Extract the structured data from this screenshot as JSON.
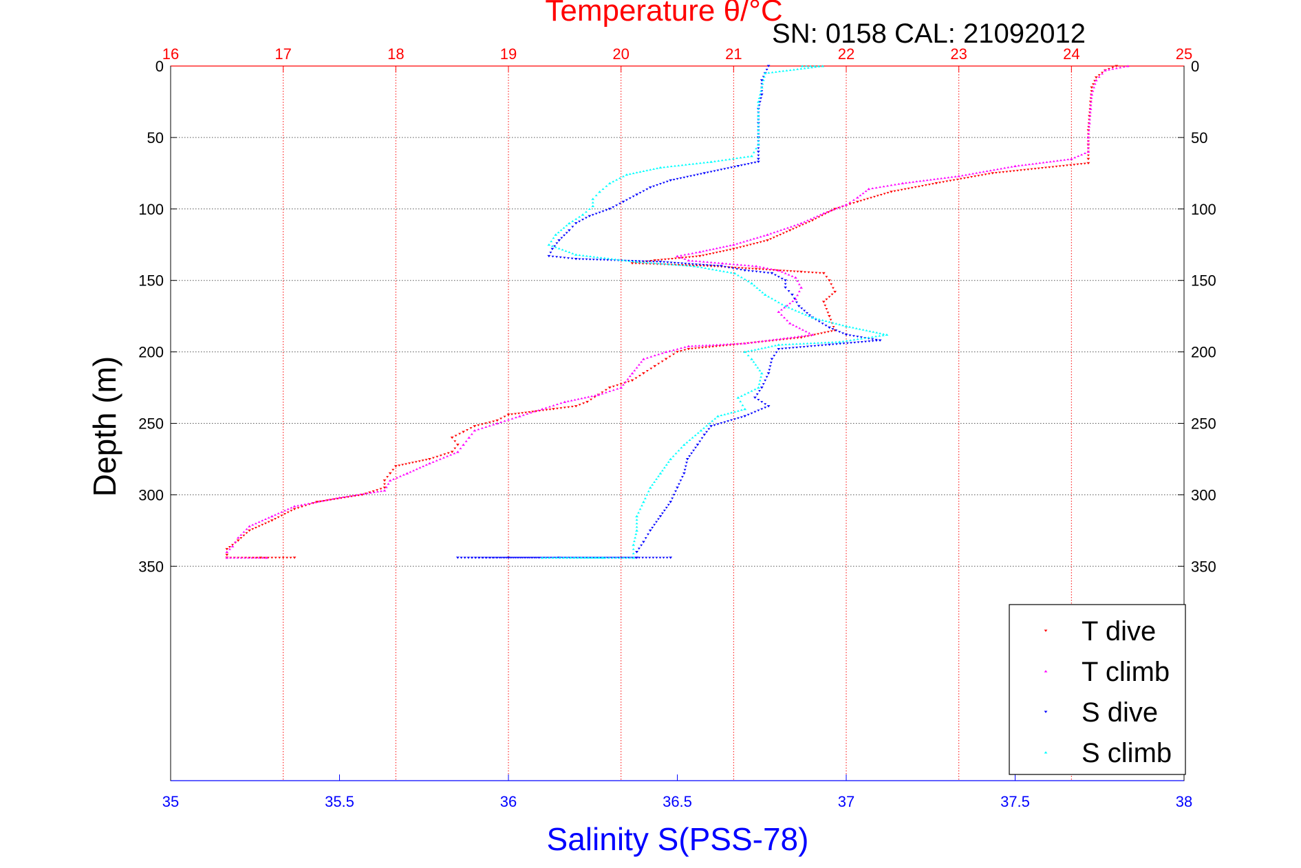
{
  "chart_data": {
    "type": "scatter",
    "title": "Temperature θ/°C",
    "subtitle": "SN: 0158  CAL: 21092012",
    "xlabel": "Salinity S(PSS-78)",
    "x2label": "Temperature θ/°C",
    "ylabel": "Depth (m)",
    "xlim": [
      35,
      38
    ],
    "x2lim": [
      16,
      25
    ],
    "ylim": [
      0,
      500
    ],
    "y_reversed": true,
    "x_ticks": [
      35,
      35.5,
      36,
      36.5,
      37,
      37.5,
      38
    ],
    "x_tick_labels": [
      "35",
      "35.5",
      "36",
      "36.5",
      "37",
      "37.5",
      "38"
    ],
    "x2_ticks": [
      16,
      17,
      18,
      19,
      20,
      21,
      22,
      23,
      24,
      25
    ],
    "x2_tick_labels": [
      "16",
      "17",
      "18",
      "19",
      "20",
      "21",
      "22",
      "23",
      "24",
      "25"
    ],
    "y_ticks": [
      0,
      50,
      100,
      150,
      200,
      250,
      300,
      350
    ],
    "y_tick_labels": [
      "0",
      "50",
      "100",
      "150",
      "200",
      "250",
      "300",
      "350"
    ],
    "grid": true,
    "legend_position": "bottom-right",
    "colors": {
      "t_dive": "#ff0000",
      "t_climb": "#ff00ff",
      "s_dive": "#0000ff",
      "s_climb": "#00ffff",
      "temperature_axis": "#ff0000",
      "salinity_axis": "#0000ff"
    },
    "series": [
      {
        "name": "T dive",
        "axis": "temperature",
        "marker": "down-triangle",
        "points": [
          [
            24.4,
            0
          ],
          [
            24.3,
            3
          ],
          [
            24.22,
            8
          ],
          [
            24.18,
            15
          ],
          [
            24.17,
            25
          ],
          [
            24.16,
            35
          ],
          [
            24.15,
            45
          ],
          [
            24.15,
            55
          ],
          [
            24.15,
            65
          ],
          [
            24.15,
            68
          ],
          [
            23.3,
            75
          ],
          [
            22.8,
            82
          ],
          [
            22.4,
            88
          ],
          [
            22.1,
            95
          ],
          [
            21.9,
            100
          ],
          [
            21.7,
            108
          ],
          [
            21.5,
            115
          ],
          [
            21.3,
            122
          ],
          [
            21.0,
            128
          ],
          [
            20.7,
            133
          ],
          [
            20.3,
            136
          ],
          [
            20.1,
            138
          ],
          [
            20.8,
            140
          ],
          [
            21.2,
            142
          ],
          [
            21.6,
            144
          ],
          [
            21.8,
            145
          ],
          [
            21.85,
            150
          ],
          [
            21.9,
            158
          ],
          [
            21.8,
            165
          ],
          [
            21.85,
            175
          ],
          [
            21.9,
            185
          ],
          [
            21.6,
            190
          ],
          [
            21.0,
            195
          ],
          [
            20.6,
            198
          ],
          [
            20.5,
            200
          ],
          [
            20.4,
            205
          ],
          [
            20.3,
            210
          ],
          [
            20.2,
            215
          ],
          [
            20.1,
            220
          ],
          [
            19.9,
            225
          ],
          [
            19.8,
            230
          ],
          [
            19.7,
            235
          ],
          [
            19.6,
            238
          ],
          [
            19.4,
            240
          ],
          [
            19.0,
            244
          ],
          [
            18.9,
            248
          ],
          [
            18.7,
            252
          ],
          [
            18.6,
            256
          ],
          [
            18.5,
            260
          ],
          [
            18.55,
            265
          ],
          [
            18.5,
            270
          ],
          [
            18.3,
            275
          ],
          [
            18.0,
            280
          ],
          [
            17.95,
            285
          ],
          [
            17.9,
            290
          ],
          [
            17.9,
            295
          ],
          [
            17.7,
            300
          ],
          [
            17.3,
            305
          ],
          [
            17.1,
            310
          ],
          [
            16.9,
            318
          ],
          [
            16.7,
            325
          ],
          [
            16.6,
            332
          ],
          [
            16.5,
            338
          ],
          [
            16.5,
            342
          ],
          [
            16.5,
            344
          ],
          [
            16.8,
            344
          ],
          [
            17.1,
            344
          ]
        ]
      },
      {
        "name": "T climb",
        "axis": "temperature",
        "marker": "up-triangle",
        "points": [
          [
            24.5,
            0
          ],
          [
            24.3,
            3
          ],
          [
            24.22,
            10
          ],
          [
            24.18,
            20
          ],
          [
            24.17,
            30
          ],
          [
            24.16,
            40
          ],
          [
            24.15,
            50
          ],
          [
            24.15,
            60
          ],
          [
            24.0,
            65
          ],
          [
            23.5,
            70
          ],
          [
            23.0,
            77
          ],
          [
            22.5,
            82
          ],
          [
            22.2,
            86
          ],
          [
            22.1,
            92
          ],
          [
            22.0,
            97
          ],
          [
            21.8,
            103
          ],
          [
            21.6,
            110
          ],
          [
            21.3,
            118
          ],
          [
            21.0,
            125
          ],
          [
            20.7,
            130
          ],
          [
            20.5,
            133
          ],
          [
            20.6,
            136
          ],
          [
            20.9,
            138
          ],
          [
            21.2,
            140
          ],
          [
            21.4,
            143
          ],
          [
            21.55,
            148
          ],
          [
            21.6,
            155
          ],
          [
            21.55,
            163
          ],
          [
            21.4,
            172
          ],
          [
            21.5,
            180
          ],
          [
            21.7,
            188
          ],
          [
            21.1,
            194
          ],
          [
            20.6,
            196
          ],
          [
            20.4,
            200
          ],
          [
            20.2,
            205
          ],
          [
            20.1,
            215
          ],
          [
            20.0,
            225
          ],
          [
            19.8,
            230
          ],
          [
            19.5,
            235
          ],
          [
            19.3,
            240
          ],
          [
            19.1,
            245
          ],
          [
            18.9,
            250
          ],
          [
            18.7,
            255
          ],
          [
            18.65,
            260
          ],
          [
            18.6,
            265
          ],
          [
            18.55,
            270
          ],
          [
            18.3,
            278
          ],
          [
            18.1,
            285
          ],
          [
            17.95,
            290
          ],
          [
            17.9,
            297
          ],
          [
            17.5,
            302
          ],
          [
            17.1,
            308
          ],
          [
            16.9,
            315
          ],
          [
            16.7,
            322
          ],
          [
            16.6,
            330
          ],
          [
            16.55,
            336
          ],
          [
            16.5,
            340
          ],
          [
            16.5,
            344
          ],
          [
            16.85,
            344
          ]
        ]
      },
      {
        "name": "S dive",
        "axis": "salinity",
        "marker": "down-triangle",
        "points": [
          [
            36.77,
            0
          ],
          [
            36.76,
            5
          ],
          [
            36.75,
            10
          ],
          [
            36.75,
            20
          ],
          [
            36.74,
            30
          ],
          [
            36.74,
            40
          ],
          [
            36.74,
            50
          ],
          [
            36.74,
            60
          ],
          [
            36.74,
            65
          ],
          [
            36.74,
            67
          ],
          [
            36.68,
            70
          ],
          [
            36.58,
            75
          ],
          [
            36.48,
            80
          ],
          [
            36.42,
            85
          ],
          [
            36.38,
            90
          ],
          [
            36.34,
            95
          ],
          [
            36.3,
            100
          ],
          [
            36.24,
            105
          ],
          [
            36.2,
            110
          ],
          [
            36.18,
            115
          ],
          [
            36.15,
            122
          ],
          [
            36.13,
            128
          ],
          [
            36.12,
            133
          ],
          [
            36.2,
            135
          ],
          [
            36.45,
            137
          ],
          [
            36.63,
            140
          ],
          [
            36.7,
            143
          ],
          [
            36.78,
            145
          ],
          [
            36.82,
            150
          ],
          [
            36.82,
            155
          ],
          [
            36.84,
            160
          ],
          [
            36.86,
            168
          ],
          [
            36.9,
            176
          ],
          [
            36.95,
            183
          ],
          [
            37.0,
            188
          ],
          [
            37.1,
            192
          ],
          [
            36.95,
            195
          ],
          [
            36.8,
            198
          ],
          [
            36.78,
            205
          ],
          [
            36.77,
            215
          ],
          [
            36.75,
            225
          ],
          [
            36.73,
            232
          ],
          [
            36.77,
            238
          ],
          [
            36.7,
            245
          ],
          [
            36.6,
            252
          ],
          [
            36.58,
            258
          ],
          [
            36.56,
            265
          ],
          [
            36.53,
            275
          ],
          [
            36.52,
            285
          ],
          [
            36.5,
            295
          ],
          [
            36.48,
            305
          ],
          [
            36.45,
            315
          ],
          [
            36.42,
            325
          ],
          [
            36.4,
            333
          ],
          [
            36.38,
            340
          ],
          [
            36.38,
            344
          ],
          [
            36.0,
            344
          ],
          [
            35.85,
            344
          ],
          [
            36.15,
            344
          ],
          [
            36.48,
            344
          ]
        ]
      },
      {
        "name": "S climb",
        "axis": "salinity",
        "marker": "up-triangle",
        "points": [
          [
            36.87,
            0
          ],
          [
            36.93,
            0
          ],
          [
            36.76,
            5
          ],
          [
            36.75,
            15
          ],
          [
            36.74,
            25
          ],
          [
            36.74,
            35
          ],
          [
            36.74,
            45
          ],
          [
            36.74,
            55
          ],
          [
            36.72,
            63
          ],
          [
            36.6,
            67
          ],
          [
            36.45,
            71
          ],
          [
            36.35,
            76
          ],
          [
            36.3,
            82
          ],
          [
            36.27,
            88
          ],
          [
            36.25,
            93
          ],
          [
            36.25,
            98
          ],
          [
            36.22,
            104
          ],
          [
            36.18,
            110
          ],
          [
            36.14,
            118
          ],
          [
            36.12,
            125
          ],
          [
            36.2,
            132
          ],
          [
            36.38,
            137
          ],
          [
            36.55,
            140
          ],
          [
            36.67,
            145
          ],
          [
            36.72,
            152
          ],
          [
            36.76,
            160
          ],
          [
            36.82,
            168
          ],
          [
            36.9,
            176
          ],
          [
            37.0,
            182
          ],
          [
            37.12,
            188
          ],
          [
            36.98,
            193
          ],
          [
            36.8,
            195
          ],
          [
            36.7,
            200
          ],
          [
            36.72,
            205
          ],
          [
            36.75,
            215
          ],
          [
            36.74,
            225
          ],
          [
            36.68,
            232
          ],
          [
            36.7,
            240
          ],
          [
            36.62,
            245
          ],
          [
            36.57,
            255
          ],
          [
            36.52,
            265
          ],
          [
            36.48,
            275
          ],
          [
            36.45,
            285
          ],
          [
            36.42,
            295
          ],
          [
            36.4,
            305
          ],
          [
            36.38,
            315
          ],
          [
            36.38,
            325
          ],
          [
            36.37,
            335
          ],
          [
            36.37,
            344
          ],
          [
            36.1,
            344
          ],
          [
            36.28,
            344
          ]
        ]
      }
    ],
    "legend": [
      "T dive",
      "T climb",
      "S dive",
      "S climb"
    ]
  }
}
